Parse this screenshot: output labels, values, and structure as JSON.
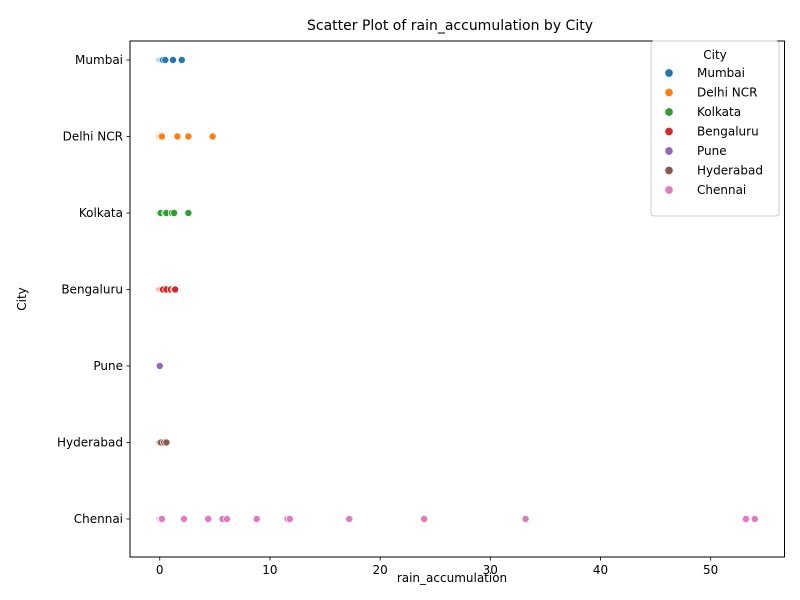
{
  "chart_data": {
    "type": "scatter",
    "title": "Scatter Plot of rain_accumulation by City",
    "xlabel": "rain_accumulation",
    "ylabel": "City",
    "xlim": [
      -2.7,
      56.7
    ],
    "x_ticks": [
      0,
      10,
      20,
      30,
      40,
      50
    ],
    "categories": [
      "Mumbai",
      "Delhi NCR",
      "Kolkata",
      "Bengaluru",
      "Pune",
      "Hyderabad",
      "Chennai"
    ],
    "grid": false,
    "legend": {
      "title": "City",
      "placement": "top-right"
    },
    "series": [
      {
        "name": "Mumbai",
        "color": "#1f77b4",
        "category": "Mumbai",
        "x": [
          0,
          0.1,
          0.2,
          0.3,
          0.5,
          1.2,
          2.0
        ]
      },
      {
        "name": "Delhi NCR",
        "color": "#ff7f0e",
        "category": "Delhi NCR",
        "x": [
          0,
          0.1,
          0.2,
          1.6,
          2.6,
          4.8
        ]
      },
      {
        "name": "Kolkata",
        "color": "#2ca02c",
        "category": "Kolkata",
        "x": [
          0,
          0.1,
          0.5,
          0.6,
          1.1,
          1.3,
          2.6
        ]
      },
      {
        "name": "Bengaluru",
        "color": "#d62728",
        "category": "Bengaluru",
        "x": [
          0,
          0.1,
          0.2,
          0.3,
          0.6,
          1.0,
          1.3,
          1.4
        ]
      },
      {
        "name": "Pune",
        "color": "#9467bd",
        "category": "Pune",
        "x": [
          0
        ]
      },
      {
        "name": "Hyderabad",
        "color": "#8c564b",
        "category": "Hyderabad",
        "x": [
          0,
          0.1,
          0.4,
          0.6
        ]
      },
      {
        "name": "Chennai",
        "color": "#e377c2",
        "category": "Chennai",
        "x": [
          0,
          0.1,
          0.2,
          2.2,
          4.4,
          5.7,
          6.1,
          8.8,
          11.6,
          11.8,
          17.2,
          24.0,
          33.2,
          53.2,
          54.0
        ]
      }
    ]
  }
}
